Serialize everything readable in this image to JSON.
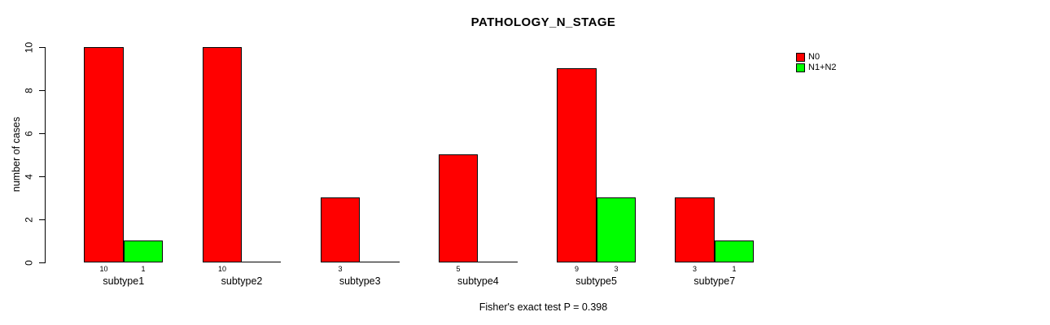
{
  "chart_data": {
    "type": "bar",
    "title": "PATHOLOGY_N_STAGE",
    "ylabel": "number of cases",
    "xlabel": "",
    "categories": [
      "subtype1",
      "subtype2",
      "subtype3",
      "subtype4",
      "subtype5",
      "subtype7"
    ],
    "series": [
      {
        "name": "N0",
        "color": "#ff0000",
        "values": [
          10,
          10,
          3,
          5,
          9,
          3
        ]
      },
      {
        "name": "N1+N2",
        "color": "#00ff00",
        "values": [
          1,
          0,
          0,
          0,
          3,
          1
        ]
      }
    ],
    "ylim": [
      0,
      10
    ],
    "yticks": [
      0,
      2,
      4,
      6,
      8,
      10
    ],
    "bar_value_labels_shown": true,
    "zero_bars_drawn_as_baseline": true,
    "legend_position": "top-right",
    "grid": false,
    "footnote": "Fisher's exact test P = 0.398",
    "colors": {
      "bar_border": "#000000",
      "axis": "#000000",
      "text": "#000000",
      "background": "#ffffff"
    }
  }
}
